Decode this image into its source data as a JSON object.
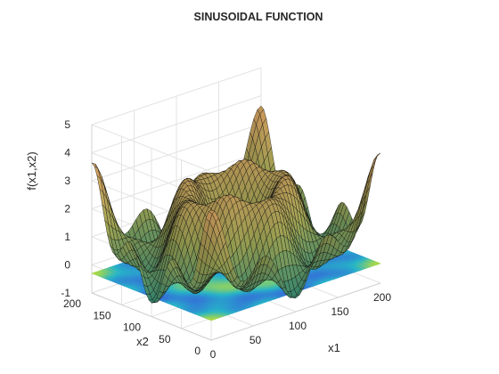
{
  "chart_data": {
    "type": "surface",
    "title": "SINUSOIDAL FUNCTION",
    "xlabel": "x1",
    "ylabel": "x2",
    "zlabel": "f(x1,x2)",
    "xlim": [
      0,
      200
    ],
    "ylim": [
      0,
      200
    ],
    "zlim": [
      -1,
      5
    ],
    "xticks": [
      "0",
      "50",
      "100",
      "150",
      "200"
    ],
    "yticks": [
      "0",
      "50",
      "100",
      "150",
      "200"
    ],
    "zticks": [
      "-1",
      "0",
      "1",
      "2",
      "3",
      "4",
      "5"
    ],
    "grid": true,
    "contour_plane_z": -0.3,
    "surface_note": "sinusoidal surface with deep central minimum near (100,100) and ripple ridges reaching about z=3.3",
    "surface_samples": [
      {
        "x1": 0,
        "x2": 200,
        "f": 3.4
      },
      {
        "x1": 200,
        "x2": 0,
        "f": 3.0
      },
      {
        "x1": 100,
        "x2": 100,
        "f": -0.9
      },
      {
        "x1": 100,
        "x2": 200,
        "f": 3.3
      },
      {
        "x1": 200,
        "x2": 200,
        "f": 0.6
      }
    ],
    "colors": {
      "surface_low": "#3c9a7e",
      "surface_mid": "#a8b05a",
      "surface_high": "#e6b068",
      "mesh_line": "#111111",
      "plane_low": "#3b4fe0",
      "plane_mid": "#26b4c8",
      "plane_high": "#a8d84a"
    }
  }
}
